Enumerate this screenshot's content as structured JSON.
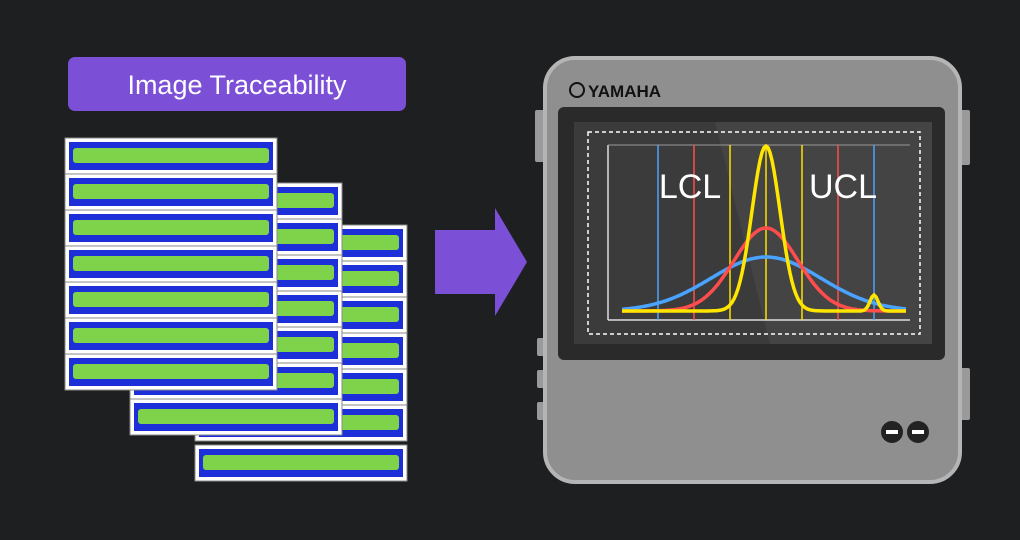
{
  "badge": {
    "label": "Image Traceability"
  },
  "device": {
    "brand": "YAMAHA",
    "screen": {
      "lower_limit": "LCL",
      "upper_limit": "UCL"
    }
  }
}
